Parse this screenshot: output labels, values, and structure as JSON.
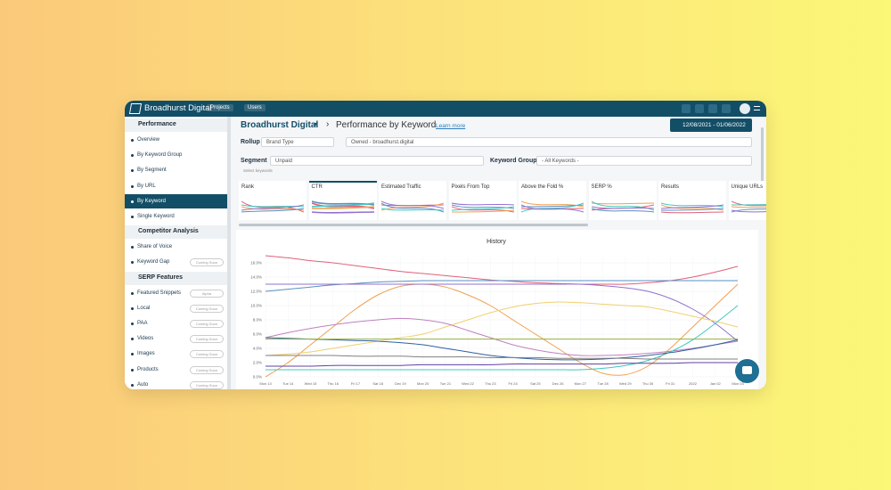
{
  "header": {
    "brand": "Broadhurst Digital",
    "nav": [
      "Projects",
      "Users"
    ]
  },
  "sidebar": {
    "sections": [
      {
        "title": "Performance",
        "items": [
          {
            "label": "Overview"
          },
          {
            "label": "By Keyword Group"
          },
          {
            "label": "By Segment"
          },
          {
            "label": "By URL"
          },
          {
            "label": "By Keyword",
            "active": true
          },
          {
            "label": "Single Keyword"
          }
        ]
      },
      {
        "title": "Competitor Analysis",
        "items": [
          {
            "label": "Share of Voice"
          },
          {
            "label": "Keyword Gap",
            "badge": "Coming Soon"
          }
        ]
      },
      {
        "title": "SERP Features",
        "items": [
          {
            "label": "Featured Snippets",
            "badge": "Alpha"
          },
          {
            "label": "Local",
            "badge": "Coming Soon"
          },
          {
            "label": "PAA",
            "badge": "Coming Soon"
          },
          {
            "label": "Videos",
            "badge": "Coming Soon"
          },
          {
            "label": "Images",
            "badge": "Coming Soon"
          },
          {
            "label": "Products",
            "badge": "Coming Soon"
          },
          {
            "label": "Auto",
            "badge": "Coming Soon"
          }
        ]
      }
    ]
  },
  "page": {
    "account": "Broadhurst Digital",
    "title": "Performance by Keyword",
    "learn_more": "Learn more",
    "date_range": "12/08/2021 - 01/06/2022"
  },
  "filters": {
    "rollup_label": "Rollup",
    "rollup": "Brand Type",
    "owned": "Owned - broadhurst.digital",
    "segment_label": "Segment",
    "segment": "Unpaid",
    "keyword_group_label": "Keyword Group",
    "keyword_group": "- All Keywords -",
    "hint": "Select keywords"
  },
  "metrics": [
    {
      "label": "Rank"
    },
    {
      "label": "CTR",
      "active": true
    },
    {
      "label": "Estimated Traffic"
    },
    {
      "label": "Pixels From Top"
    },
    {
      "label": "Above the Fold %"
    },
    {
      "label": "SERP %"
    },
    {
      "label": "Results"
    },
    {
      "label": "Unique URLs"
    }
  ],
  "chart_data": {
    "type": "line",
    "title": "History",
    "grid": true,
    "categories": [
      "Mon 13",
      "Tue 14",
      "Wed 15",
      "Thu 16",
      "Fri 17",
      "Sat 18",
      "Dec 19",
      "Mon 20",
      "Tue 21",
      "Wed 22",
      "Thu 23",
      "Fri 24",
      "Sat 25",
      "Dec 26",
      "Mon 27",
      "Tue 28",
      "Wed 29",
      "Thu 30",
      "Fri 31",
      "2022",
      "Jan 02",
      "Mon 03"
    ],
    "ylim": [
      0,
      17
    ],
    "yticks": [
      {
        "value": 0,
        "label": "0.0%"
      },
      {
        "value": 2,
        "label": "2.0%"
      },
      {
        "value": 4,
        "label": "4.0%"
      },
      {
        "value": 6,
        "label": "6.0%"
      },
      {
        "value": 8,
        "label": "8.0%"
      },
      {
        "value": 10,
        "label": "10.0%"
      },
      {
        "value": 12,
        "label": "12.0%"
      },
      {
        "value": 14,
        "label": "14.0%"
      },
      {
        "value": 16,
        "label": "16.0%"
      }
    ],
    "series": [
      {
        "color": "#e0607a",
        "values": [
          17,
          16.7,
          16.3,
          16,
          15.6,
          15.2,
          14.8,
          14.5,
          14.2,
          13.9,
          13.6,
          13.4,
          13.2,
          13.1,
          13,
          13,
          13,
          13.2,
          13.5,
          14,
          14.7,
          15.5
        ]
      },
      {
        "color": "#5a8fc0",
        "values": [
          12,
          12.3,
          12.6,
          12.9,
          13.1,
          13.3,
          13.4,
          13.5,
          13.5,
          13.5,
          13.5,
          13.5,
          13.5,
          13.5,
          13.5,
          13.5,
          13.5,
          13.5,
          13.5,
          13.5,
          13.5,
          13.5
        ]
      },
      {
        "color": "#f0a050",
        "values": [
          0,
          2,
          4.5,
          7,
          9.5,
          11.5,
          12.7,
          13,
          12.6,
          11.5,
          10,
          8,
          6,
          4,
          2,
          0.5,
          0.3,
          1.5,
          4,
          7,
          10,
          13
        ]
      },
      {
        "color": "#9070d0",
        "values": [
          13,
          13,
          13,
          13,
          13,
          13,
          13,
          13,
          13,
          13,
          13,
          13,
          13,
          13,
          13,
          12.8,
          12.5,
          12,
          11,
          9.5,
          7.5,
          5
        ]
      },
      {
        "color": "#f0d070",
        "values": [
          3,
          3.2,
          3.5,
          4,
          4.5,
          5,
          5.5,
          6,
          7,
          8,
          9,
          9.8,
          10.3,
          10.5,
          10.4,
          10.2,
          10,
          9.8,
          9.2,
          8.5,
          7.8,
          7
        ]
      },
      {
        "color": "#c080c0",
        "values": [
          5.5,
          6.2,
          6.8,
          7.3,
          7.7,
          8,
          8.2,
          8,
          7.5,
          6.5,
          5.5,
          4.5,
          3.8,
          3.3,
          3,
          3,
          3.1,
          3.3,
          3.6,
          4,
          4.5,
          5
        ]
      },
      {
        "color": "#40c8c0",
        "values": [
          1,
          1,
          1,
          1,
          1,
          1,
          1,
          1,
          1,
          1,
          1,
          1,
          1,
          1,
          1,
          1.2,
          1.6,
          2.3,
          3.5,
          5.2,
          7.5,
          10
        ]
      },
      {
        "color": "#3060a0",
        "values": [
          5.5,
          5.4,
          5.3,
          5.2,
          5.1,
          5,
          4.8,
          4.5,
          4,
          3.5,
          3,
          2.7,
          2.5,
          2.4,
          2.4,
          2.5,
          2.7,
          3,
          3.4,
          3.9,
          4.5,
          5.2
        ]
      },
      {
        "color": "#90b040",
        "values": [
          5.3,
          5.3,
          5.3,
          5.3,
          5.3,
          5.3,
          5.3,
          5.3,
          5.3,
          5.3,
          5.3,
          5.3,
          5.3,
          5.3,
          5.3,
          5.3,
          5.3,
          5.3,
          5.3,
          5.3,
          5.3,
          5.3
        ]
      },
      {
        "color": "#808080",
        "values": [
          3,
          3,
          3,
          3,
          2.9,
          2.9,
          2.9,
          2.8,
          2.8,
          2.8,
          2.7,
          2.7,
          2.7,
          2.6,
          2.6,
          2.6,
          2.6,
          2.5,
          2.5,
          2.5,
          2.5,
          2.5
        ]
      },
      {
        "color": "#6040a0",
        "values": [
          1.5,
          1.5,
          1.5,
          1.6,
          1.6,
          1.6,
          1.6,
          1.7,
          1.7,
          1.7,
          1.7,
          1.8,
          1.8,
          1.8,
          1.8,
          1.8,
          1.9,
          1.9,
          1.9,
          2,
          2,
          2
        ]
      }
    ]
  }
}
